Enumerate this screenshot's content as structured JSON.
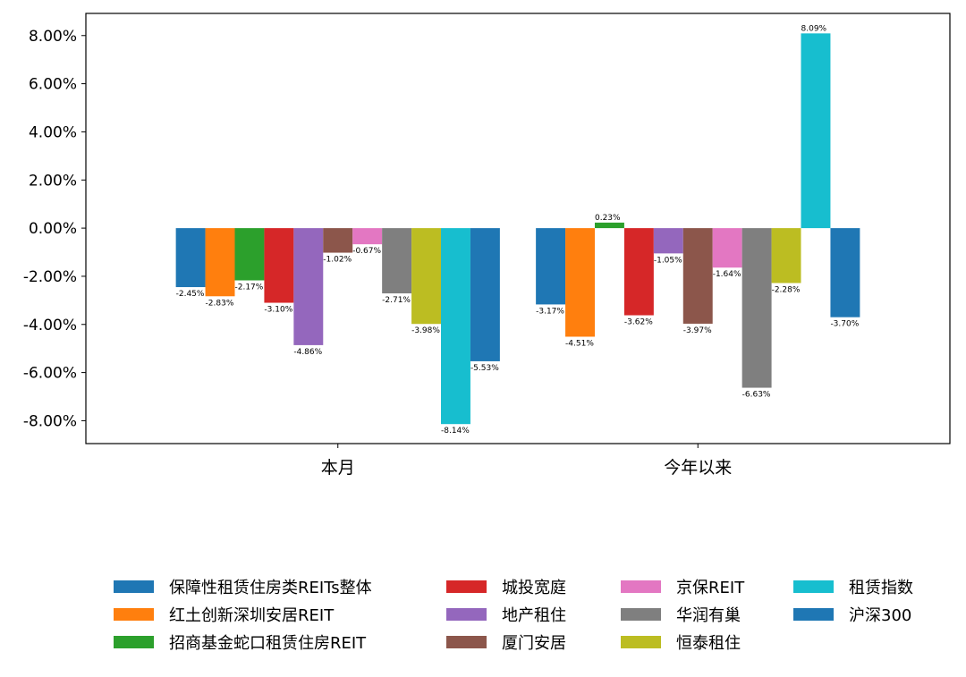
{
  "chart_data": {
    "type": "bar",
    "title": "",
    "xlabel": "",
    "ylabel": "",
    "categories": [
      "本月",
      "今年以来"
    ],
    "ylim": [
      -8.95,
      8.92
    ],
    "yticks": [
      -8,
      -6,
      -4,
      -2,
      0,
      2,
      4,
      6,
      8
    ],
    "ytick_labels": [
      "-8.00%",
      "-6.00%",
      "-4.00%",
      "-2.00%",
      "0.00%",
      "2.00%",
      "4.00%",
      "6.00%",
      "8.00%"
    ],
    "grid": false,
    "legend_position": "bottom",
    "series": [
      {
        "name": "保障性租赁住房类REITs整体",
        "color": "#1f77b4",
        "values": [
          -2.45,
          -3.17
        ],
        "labels": [
          "-2.45%",
          "-3.17%"
        ]
      },
      {
        "name": "红土创新深圳安居REIT",
        "color": "#ff7f0e",
        "values": [
          -2.83,
          -4.51
        ],
        "labels": [
          "-2.83%",
          "-4.51%"
        ]
      },
      {
        "name": "招商基金蛇口租赁住房REIT",
        "color": "#2ca02c",
        "values": [
          -2.17,
          0.23
        ],
        "labels": [
          "-2.17%",
          "0.23%"
        ]
      },
      {
        "name": "城投宽庭",
        "color": "#d62728",
        "values": [
          -3.1,
          -3.62
        ],
        "labels": [
          "-3.10%",
          "-3.62%"
        ]
      },
      {
        "name": "地产租住",
        "color": "#9467bd",
        "values": [
          -4.86,
          -1.05
        ],
        "labels": [
          "-4.86%",
          "-1.05%"
        ]
      },
      {
        "name": "厦门安居",
        "color": "#8c564b",
        "values": [
          -1.02,
          -3.97
        ],
        "labels": [
          "-1.02%",
          "-3.97%"
        ]
      },
      {
        "name": "京保REIT",
        "color": "#e377c2",
        "values": [
          -0.67,
          -1.64
        ],
        "labels": [
          "-0.67%",
          "-1.64%"
        ]
      },
      {
        "name": "华润有巢",
        "color": "#7f7f7f",
        "values": [
          -2.71,
          -6.63
        ],
        "labels": [
          "-2.71%",
          "-6.63%"
        ]
      },
      {
        "name": "恒泰租住",
        "color": "#bcbd22",
        "values": [
          -3.98,
          -2.28
        ],
        "labels": [
          "-3.98%",
          "-2.28%"
        ]
      },
      {
        "name": "租赁指数",
        "color": "#17becf",
        "values": [
          -8.14,
          8.09
        ],
        "labels": [
          "-8.14%",
          "8.09%"
        ]
      },
      {
        "name": "沪深300",
        "color": "#1f77b4",
        "values": [
          -5.53,
          -3.7
        ],
        "labels": [
          "-5.53%",
          "-3.70%"
        ]
      }
    ]
  }
}
